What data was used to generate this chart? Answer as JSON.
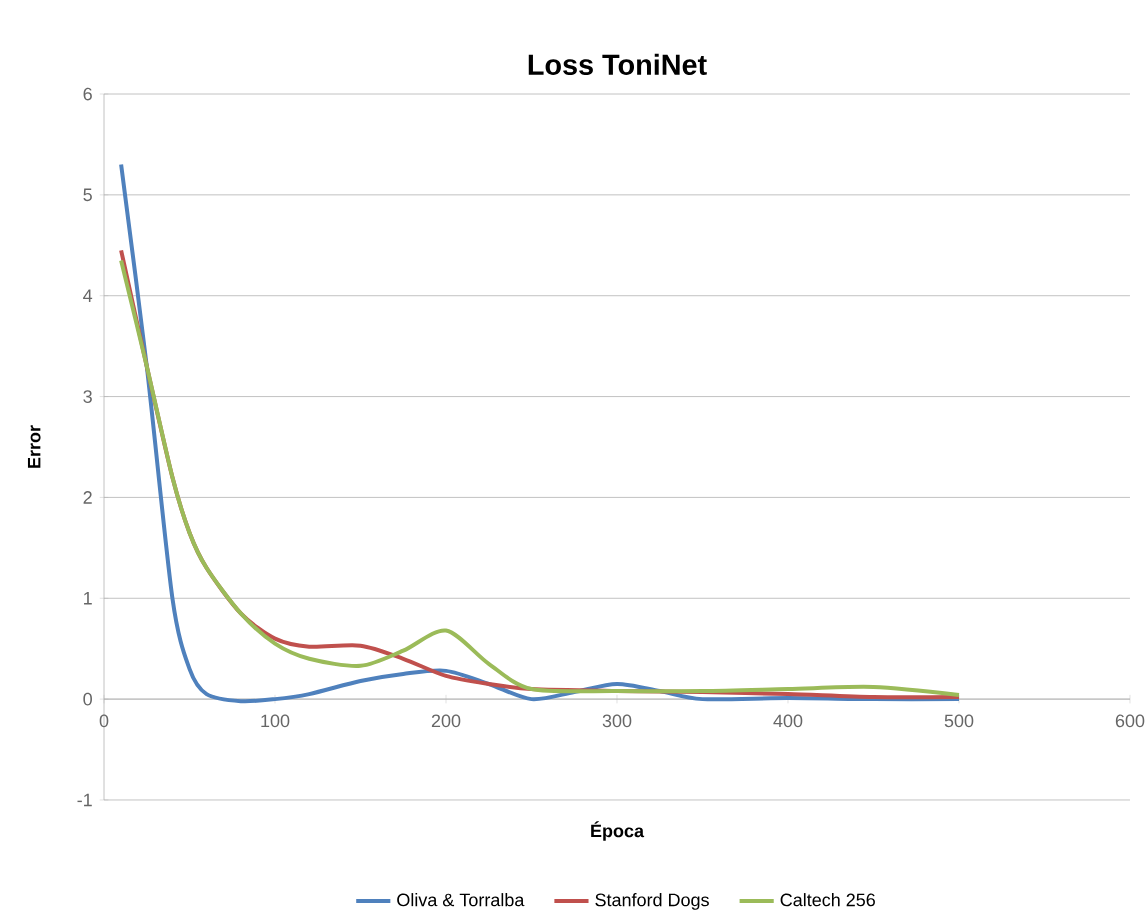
{
  "chart_data": {
    "type": "line",
    "title": "Loss ToniNet",
    "xlabel": "Época",
    "ylabel": "Error",
    "xlim": [
      0,
      600
    ],
    "xticks": [
      0,
      100,
      200,
      300,
      400,
      500,
      600
    ],
    "ylim": [
      -1,
      6
    ],
    "yticks": [
      -1,
      0,
      1,
      2,
      3,
      4,
      5,
      6
    ],
    "grid": "y",
    "legend": "bottom",
    "marker": "none",
    "line_style": "solid",
    "series": [
      {
        "name": "Oliva & Torralba",
        "color": "#4f81bd",
        "x": [
          10,
          25,
          40,
          50,
          60,
          80,
          100,
          120,
          150,
          175,
          200,
          225,
          250,
          275,
          300,
          325,
          350,
          400,
          450,
          500
        ],
        "values": [
          5.3,
          3.3,
          1.0,
          0.3,
          0.05,
          -0.02,
          0.0,
          0.05,
          0.18,
          0.25,
          0.28,
          0.15,
          0.0,
          0.07,
          0.15,
          0.08,
          0.0,
          0.01,
          0.0,
          0.0
        ]
      },
      {
        "name": "Stanford Dogs",
        "color": "#c0504d",
        "x": [
          10,
          25,
          40,
          50,
          60,
          80,
          100,
          120,
          150,
          175,
          200,
          225,
          250,
          300,
          350,
          400,
          450,
          500
        ],
        "values": [
          4.45,
          3.3,
          2.2,
          1.65,
          1.3,
          0.85,
          0.6,
          0.52,
          0.53,
          0.4,
          0.23,
          0.15,
          0.1,
          0.08,
          0.07,
          0.05,
          0.02,
          0.02
        ]
      },
      {
        "name": "Caltech 256",
        "color": "#9bbb59",
        "x": [
          10,
          25,
          40,
          50,
          60,
          80,
          100,
          120,
          150,
          175,
          200,
          225,
          250,
          300,
          350,
          400,
          450,
          500
        ],
        "values": [
          4.35,
          3.3,
          2.2,
          1.65,
          1.3,
          0.85,
          0.55,
          0.4,
          0.33,
          0.48,
          0.68,
          0.35,
          0.1,
          0.08,
          0.08,
          0.1,
          0.12,
          0.04
        ]
      }
    ]
  }
}
